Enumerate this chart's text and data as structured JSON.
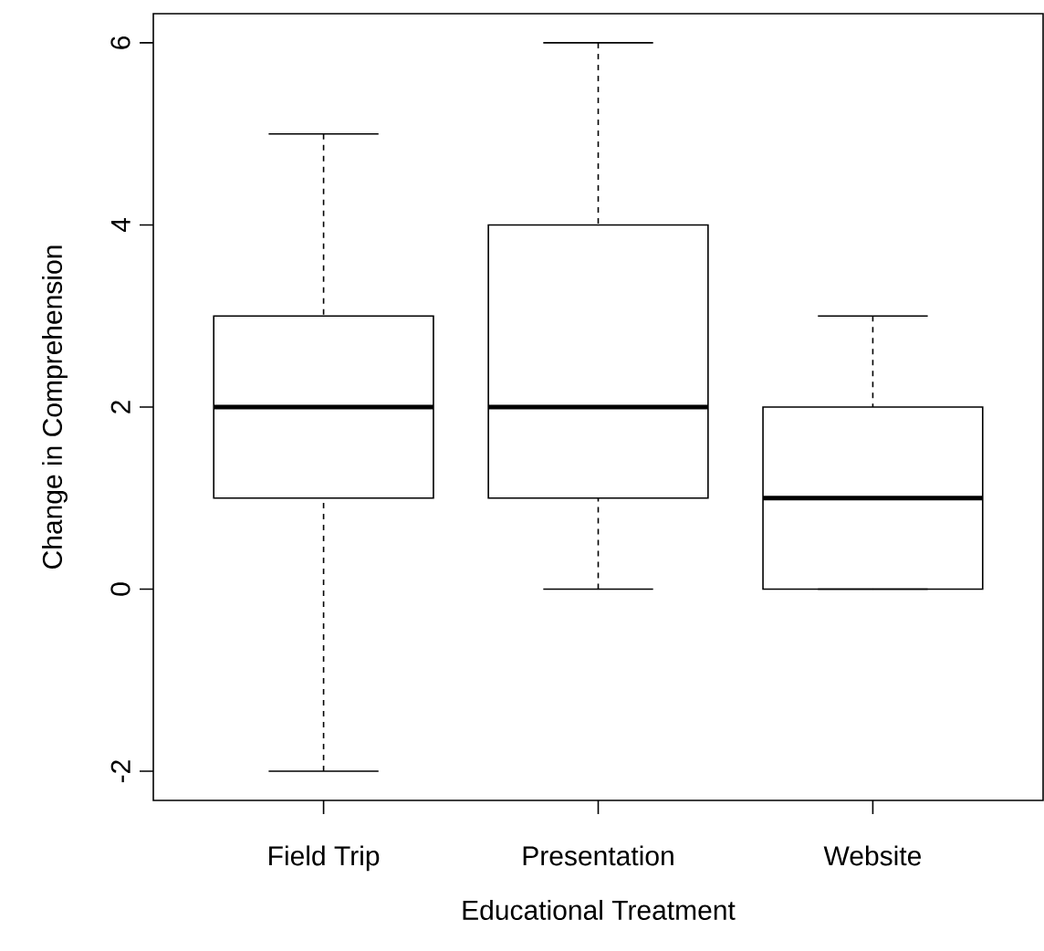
{
  "chart_data": {
    "type": "box",
    "xlabel": "Educational Treatment",
    "ylabel": "Change in Comprehension",
    "categories": [
      "Field Trip",
      "Presentation",
      "Website"
    ],
    "boxes": [
      {
        "low": -2,
        "q1": 1,
        "median": 2,
        "q3": 3,
        "high": 5
      },
      {
        "low": 0,
        "q1": 1,
        "median": 2,
        "q3": 4,
        "high": 6
      },
      {
        "low": 0,
        "q1": 0,
        "median": 1,
        "q3": 2,
        "high": 3
      }
    ],
    "ylim": [
      -2.32,
      6.32
    ],
    "yticks": [
      -2,
      0,
      2,
      4,
      6
    ]
  }
}
